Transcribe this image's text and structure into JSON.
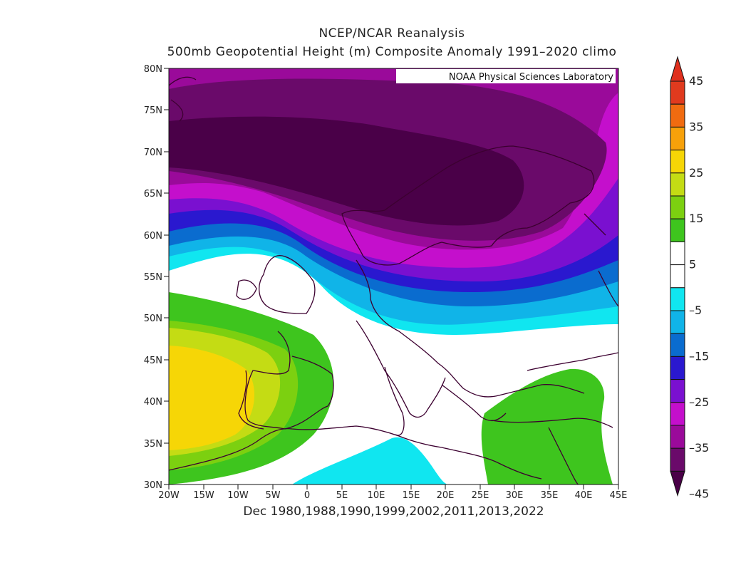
{
  "title_line1": "NCEP/NCAR Reanalysis",
  "title_line2": "500mb Geopotential Height (m) Composite Anomaly 1991–2020 climo",
  "credit": "NOAA Physical Sciences Laboratory",
  "bottom_label": "Dec 1980,1988,1990,1999,2002,2011,2013,2022",
  "lat_labels": [
    "30N",
    "35N",
    "40N",
    "45N",
    "50N",
    "55N",
    "60N",
    "65N",
    "70N",
    "75N",
    "80N"
  ],
  "lon_labels": [
    "20W",
    "15W",
    "10W",
    "5W",
    "0",
    "5E",
    "10E",
    "15E",
    "20E",
    "25E",
    "30E",
    "35E",
    "40E",
    "45E"
  ],
  "colorbar": {
    "labels": [
      "45",
      "35",
      "25",
      "15",
      "5",
      "–5",
      "–15",
      "–25",
      "–35",
      "–45"
    ],
    "colors_top_to_bottom": [
      "#e03a1e",
      "#f06b10",
      "#f7a10a",
      "#f6d606",
      "#c4dc14",
      "#7cd010",
      "#3ec51e",
      "#ffffff",
      "#ffffff",
      "#10e6f0",
      "#10b4e8",
      "#0a6ccf",
      "#2a18cf",
      "#7a10d0",
      "#c40fcc",
      "#9a0a9a",
      "#6a0a6a"
    ],
    "arrow_top_color": "#e0301e",
    "arrow_bottom_color": "#4a0048"
  }
}
